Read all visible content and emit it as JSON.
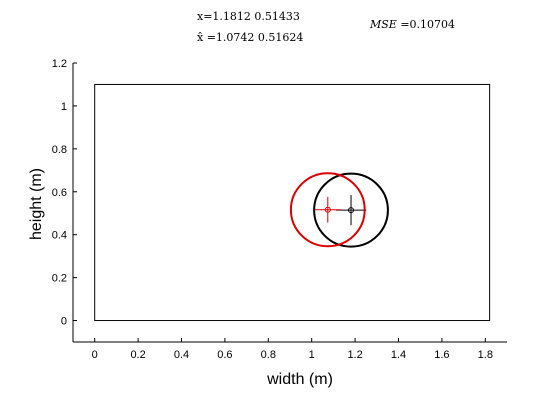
{
  "header": {
    "true_position": "x=1.1812 0.51433",
    "estimate_position": "x̂ =1.0742 0.51624",
    "mse_label": "MSE",
    "mse_value": " =0.10704"
  },
  "chart_data": {
    "type": "scatter",
    "xlabel": "width (m)",
    "ylabel": "height (m)",
    "xlim": [
      -0.1,
      1.9
    ],
    "ylim": [
      -0.1,
      1.2
    ],
    "xticks": [
      0,
      0.2,
      0.4,
      0.6,
      0.8,
      1,
      1.2,
      1.4,
      1.6,
      1.8
    ],
    "yticks": [
      0,
      0.2,
      0.4,
      0.6,
      0.8,
      1,
      1.2
    ],
    "room": {
      "x": [
        0,
        1.82
      ],
      "y": [
        0,
        1.1
      ]
    },
    "series": [
      {
        "role": "true",
        "center": [
          1.1812,
          0.51433
        ],
        "radius": 0.17,
        "marker_arm": 0.07,
        "color": "#000000"
      },
      {
        "role": "estimate",
        "center": [
          1.0742,
          0.51624
        ],
        "radius": 0.17,
        "marker_arm": 0.06,
        "color": "#dd0000"
      }
    ],
    "grid": false
  }
}
